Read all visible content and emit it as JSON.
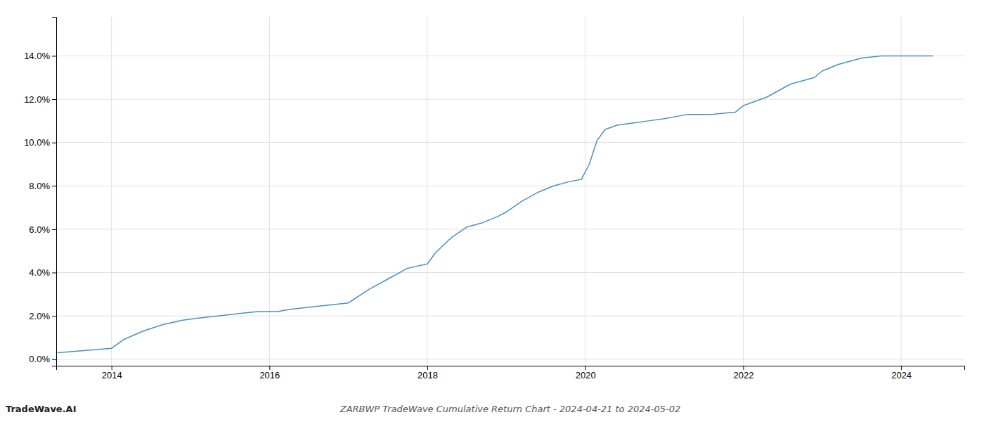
{
  "chart_data": {
    "type": "line",
    "title": "ZARBWP TradeWave Cumulative Return Chart - 2024-04-21 to 2024-05-02",
    "annotations": [
      {
        "text": "TradeWave.AI"
      }
    ],
    "color": "#4a90c4",
    "grid": true,
    "xlim": [
      2013.3,
      2024.8
    ],
    "xticks": [
      2014,
      2016,
      2018,
      2020,
      2022,
      2024
    ],
    "ylim": [
      -0.003,
      0.158
    ],
    "yticks": [
      {
        "value": 0.0,
        "label": "0.0%"
      },
      {
        "value": 0.02,
        "label": "2.0%"
      },
      {
        "value": 0.04,
        "label": "4.0%"
      },
      {
        "value": 0.06,
        "label": "6.0%"
      },
      {
        "value": 0.08,
        "label": "8.0%"
      },
      {
        "value": 0.1,
        "label": "10.0%"
      },
      {
        "value": 0.12,
        "label": "12.0%"
      },
      {
        "value": 0.14,
        "label": "14.0%"
      }
    ],
    "x": [
      2013.32,
      2014.0,
      2014.15,
      2014.4,
      2014.65,
      2014.9,
      2015.1,
      2015.35,
      2015.6,
      2015.85,
      2016.0,
      2016.1,
      2016.25,
      2016.5,
      2016.75,
      2017.0,
      2017.25,
      2017.5,
      2017.75,
      2018.0,
      2018.1,
      2018.3,
      2018.5,
      2018.7,
      2018.9,
      2019.0,
      2019.2,
      2019.4,
      2019.6,
      2019.8,
      2019.95,
      2020.05,
      2020.15,
      2020.25,
      2020.4,
      2020.6,
      2020.8,
      2021.0,
      2021.3,
      2021.6,
      2021.9,
      2022.0,
      2022.3,
      2022.6,
      2022.9,
      2023.0,
      2023.2,
      2023.5,
      2023.75,
      2024.0,
      2024.4
    ],
    "values": [
      0.003,
      0.005,
      0.009,
      0.013,
      0.016,
      0.018,
      0.019,
      0.02,
      0.021,
      0.022,
      0.022,
      0.022,
      0.023,
      0.024,
      0.025,
      0.026,
      0.032,
      0.037,
      0.042,
      0.044,
      0.049,
      0.056,
      0.061,
      0.063,
      0.066,
      0.068,
      0.073,
      0.077,
      0.08,
      0.082,
      0.083,
      0.09,
      0.101,
      0.106,
      0.108,
      0.109,
      0.11,
      0.111,
      0.113,
      0.113,
      0.114,
      0.117,
      0.121,
      0.127,
      0.13,
      0.133,
      0.136,
      0.139,
      0.14,
      0.14,
      0.14
    ]
  }
}
